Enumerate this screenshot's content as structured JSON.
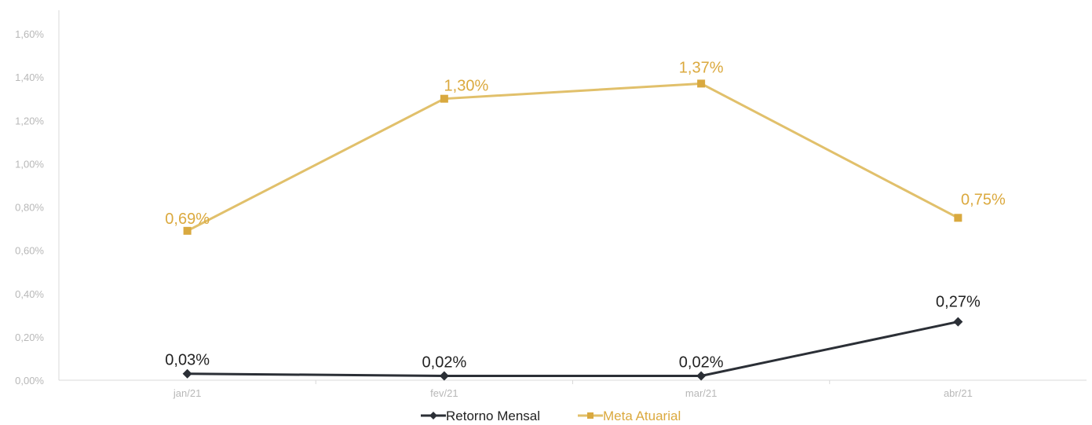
{
  "chart_data": {
    "type": "line",
    "categories": [
      "jan/21",
      "fev/21",
      "mar/21",
      "abr/21"
    ],
    "y_ticks": [
      "0,00%",
      "0,20%",
      "0,40%",
      "0,60%",
      "0,80%",
      "1,00%",
      "1,20%",
      "1,40%",
      "1,60%"
    ],
    "ylim": [
      0,
      1.6
    ],
    "grid": false,
    "legend_position": "bottom",
    "series": [
      {
        "name": "Retorno Mensal",
        "values": [
          0.03,
          0.02,
          0.02,
          0.27
        ],
        "labels": [
          "0,03%",
          "0,02%",
          "0,02%",
          "0,27%"
        ],
        "color": "#2b2f36",
        "label_color": "#222222",
        "marker": "diamond"
      },
      {
        "name": "Meta Atuarial",
        "values": [
          0.69,
          1.3,
          1.37,
          0.75
        ],
        "labels": [
          "0,69%",
          "1,30%",
          "1,37%",
          "0,75%"
        ],
        "color": "#e1c06b",
        "label_color": "#dba93e",
        "marker_color": "#d9a93f",
        "marker": "square"
      }
    ]
  }
}
